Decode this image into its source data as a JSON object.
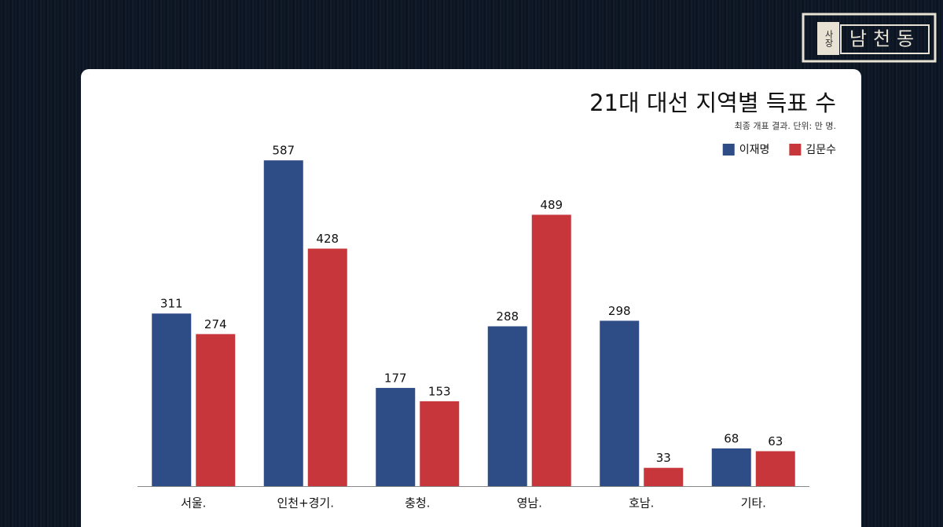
{
  "chart_data": {
    "type": "bar",
    "title": "21대 대선 지역별 득표 수",
    "subtitle": "최종 개표 결과. 단위: 만 명.",
    "categories": [
      "서울.",
      "인천+경기.",
      "충청.",
      "영남.",
      "호남.",
      "기타."
    ],
    "series": [
      {
        "name": "이재명",
        "color": "#2e4c86",
        "values": [
          311,
          587,
          177,
          288,
          298,
          68
        ]
      },
      {
        "name": "김문수",
        "color": "#c7363b",
        "values": [
          274,
          428,
          153,
          489,
          33,
          63
        ]
      }
    ],
    "ylim": [
      0,
      600
    ],
    "legend": "top-right"
  },
  "logo": {
    "small": "사장",
    "main": "남천동"
  }
}
